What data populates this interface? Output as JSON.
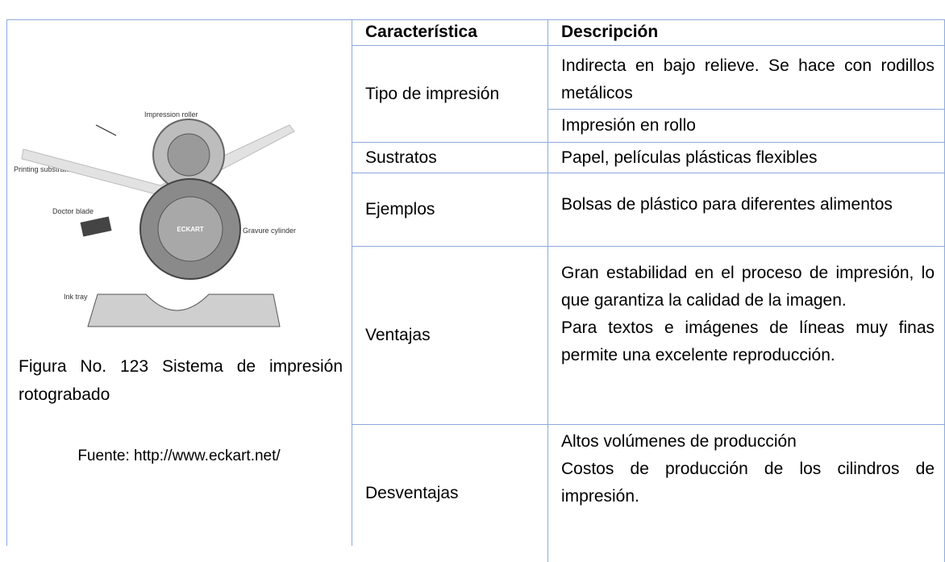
{
  "figure": {
    "labels": {
      "impression_roller": "Impression roller",
      "printing_substrate": "Printing substrate",
      "doctor_blade": "Doctor blade",
      "gravure_cylinder": "Gravure cylinder",
      "ink_tray": "Ink tray",
      "logo": "ECKART"
    },
    "caption": "Figura No. 123 Sistema de impresión rotograbado",
    "source": "Fuente: http://www.eckart.net/"
  },
  "table": {
    "header": [
      "Característica",
      "Descripción"
    ],
    "rows": [
      {
        "feature": "Tipo de impresión",
        "descriptions": [
          "Indirecta en bajo relieve. Se hace con rodillos metálicos",
          "Impresión en rollo"
        ]
      },
      {
        "feature": "Sustratos",
        "descriptions": [
          "Papel, películas plásticas flexibles"
        ]
      },
      {
        "feature": "Ejemplos",
        "descriptions": [
          "Bolsas de plástico para diferentes alimentos"
        ]
      },
      {
        "feature": "Ventajas",
        "descriptions": [
          "Gran estabilidad en el proceso de impresión, lo que garantiza la calidad de la imagen.",
          "Para textos e imágenes de líneas muy finas permite una excelente reproducción."
        ]
      },
      {
        "feature": "Desventajas",
        "descriptions": [
          "Altos volúmenes de producción",
          "Costos de producción de los cilindros de impresión."
        ]
      }
    ]
  }
}
